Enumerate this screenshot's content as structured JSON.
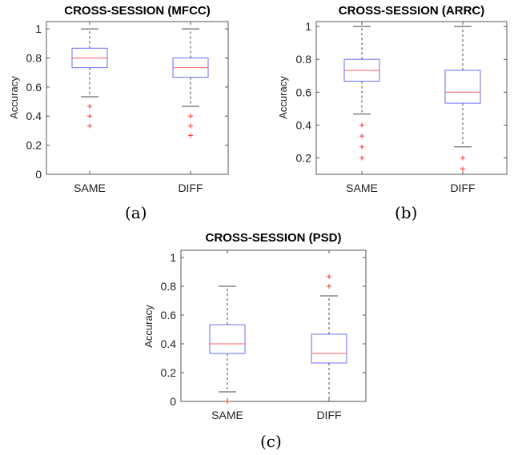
{
  "captions": [
    "(a)",
    "(b)",
    "(c)"
  ],
  "colors": {
    "box": "#6b6bff",
    "median": "#ff6060",
    "whisker": "#444444",
    "outlier": "#ff3030",
    "frame": "#555555"
  },
  "chart_data": [
    {
      "type": "box",
      "title": "CROSS-SESSION (MFCC)",
      "xlabel": "",
      "ylabel": "Accuracy",
      "categories": [
        "SAME",
        "DIFF"
      ],
      "ylim": [
        0,
        1.05
      ],
      "yticks": [
        0,
        0.2,
        0.4,
        0.6,
        0.8,
        1
      ],
      "ytick_labels": [
        "0",
        "0.2",
        "0.4",
        "0.6",
        "0.8",
        "1"
      ],
      "boxes": [
        {
          "q1": 0.733,
          "median": 0.8,
          "q3": 0.867,
          "whisker_low": 0.533,
          "whisker_high": 1.0,
          "outliers": [
            0.467,
            0.4,
            0.333
          ]
        },
        {
          "q1": 0.667,
          "median": 0.733,
          "q3": 0.8,
          "whisker_low": 0.467,
          "whisker_high": 1.0,
          "outliers": [
            0.4,
            0.333,
            0.267
          ]
        }
      ]
    },
    {
      "type": "box",
      "title": "CROSS-SESSION (ARRC)",
      "xlabel": "",
      "ylabel": "Accuracy",
      "categories": [
        "SAME",
        "DIFF"
      ],
      "ylim": [
        0.1,
        1.03
      ],
      "yticks": [
        0.2,
        0.4,
        0.6,
        0.8,
        1
      ],
      "ytick_labels": [
        "0.2",
        "0.4",
        "0.6",
        "0.8",
        "1"
      ],
      "boxes": [
        {
          "q1": 0.667,
          "median": 0.733,
          "q3": 0.8,
          "whisker_low": 0.467,
          "whisker_high": 1.0,
          "outliers": [
            0.4,
            0.333,
            0.267,
            0.2
          ]
        },
        {
          "q1": 0.533,
          "median": 0.6,
          "q3": 0.733,
          "whisker_low": 0.267,
          "whisker_high": 1.0,
          "outliers": [
            0.2,
            0.133
          ]
        }
      ]
    },
    {
      "type": "box",
      "title": "CROSS-SESSION (PSD)",
      "xlabel": "",
      "ylabel": "Accuracy",
      "categories": [
        "SAME",
        "DIFF"
      ],
      "ylim": [
        0,
        1.05
      ],
      "yticks": [
        0,
        0.2,
        0.4,
        0.6,
        0.8,
        1
      ],
      "ytick_labels": [
        "0",
        "0.2",
        "0.4",
        "0.6",
        "0.8",
        "1"
      ],
      "boxes": [
        {
          "q1": 0.333,
          "median": 0.4,
          "q3": 0.533,
          "whisker_low": 0.067,
          "whisker_high": 0.8,
          "outliers": [
            0.0
          ]
        },
        {
          "q1": 0.267,
          "median": 0.333,
          "q3": 0.467,
          "whisker_low": 0.0,
          "whisker_high": 0.733,
          "outliers": [
            0.867,
            0.8
          ]
        }
      ]
    }
  ]
}
